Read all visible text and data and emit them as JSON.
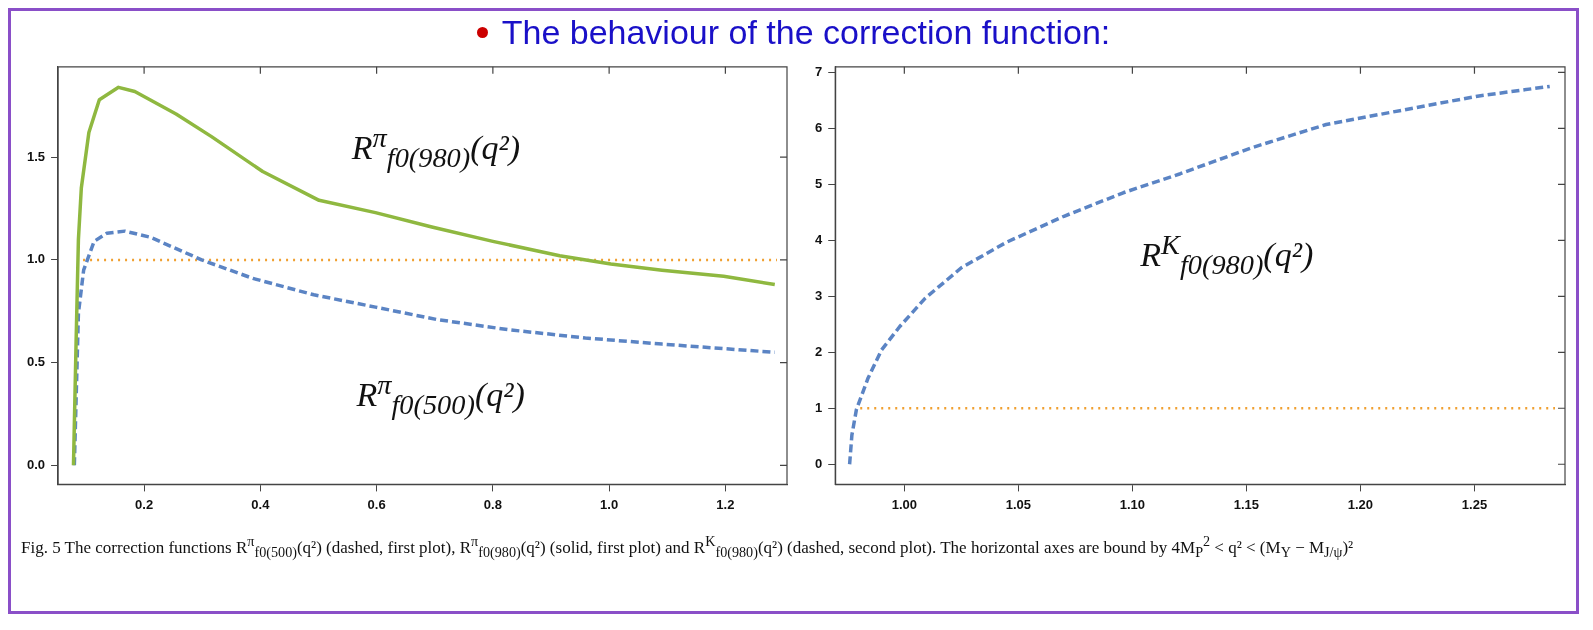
{
  "chart_data": [
    {
      "type": "line",
      "title": "The behaviour of the correction function:",
      "xlim": [
        0.052,
        1.306
      ],
      "ylim": [
        -0.093,
        1.94
      ],
      "xticks": [
        0.2,
        0.4,
        0.6,
        0.8,
        {
          "value": 1,
          "label": "1.0"
        },
        1.2
      ],
      "yticks": [
        {
          "value": 0,
          "label": "0.0"
        },
        0.5,
        {
          "value": 1,
          "label": "1.0"
        },
        1.5
      ],
      "grid": false,
      "legend": false,
      "marker": "none",
      "ref_lines": [
        {
          "axis": "y",
          "value": 1,
          "color": "#f0a030",
          "line_style": "dotted"
        }
      ],
      "series": [
        {
          "name": "R$^{π}$$_{f0(980)}$(q²)",
          "color": "#8fb840",
          "line_style": "solid",
          "x": [
            0.0785,
            0.083,
            0.087,
            0.092,
            0.105,
            0.123,
            0.156,
            0.184,
            0.255,
            0.316,
            0.404,
            0.501,
            0.598,
            0.695,
            0.8,
            0.915,
            1.003,
            1.091,
            1.197,
            1.285
          ],
          "values": [
            0,
            0.6,
            1.1,
            1.35,
            1.62,
            1.78,
            1.84,
            1.82,
            1.71,
            1.6,
            1.43,
            1.29,
            1.23,
            1.16,
            1.09,
            1.02,
            0.98,
            0.95,
            0.92,
            0.88
          ]
        },
        {
          "name": "R$^{π}$$_{f0(500)}$(q²)",
          "color": "#5b84c4",
          "line_style": "dashed",
          "x": [
            0.08,
            0.087,
            0.096,
            0.114,
            0.136,
            0.167,
            0.211,
            0.299,
            0.387,
            0.492,
            0.598,
            0.703,
            0.827,
            0.959,
            1.091,
            1.285
          ],
          "values": [
            0,
            0.74,
            0.95,
            1.09,
            1.13,
            1.14,
            1.11,
            1.0,
            0.91,
            0.83,
            0.77,
            0.71,
            0.66,
            0.62,
            0.59,
            0.55
          ]
        }
      ]
    },
    {
      "type": "line",
      "xlim": [
        0.9697,
        1.2897
      ],
      "ylim": [
        -0.36,
        7.1
      ],
      "xticks": [
        {
          "value": 1,
          "label": "1.00"
        },
        1.05,
        {
          "value": 1.1,
          "label": "1.10"
        },
        1.15,
        {
          "value": 1.2,
          "label": "1.20"
        },
        1.25
      ],
      "yticks": [
        0,
        1,
        2,
        3,
        4,
        5,
        6,
        7
      ],
      "grid": false,
      "legend": false,
      "marker": "none",
      "ref_lines": [
        {
          "axis": "y",
          "value": 1,
          "color": "#f0a030",
          "line_style": "dotted"
        }
      ],
      "annotations": [
        "Fig. 5 The correction functions R$^{π}$$_{f0(500)}$(q²) (dashed, first plot), R$^{π}$$_{f0(980)}$(q²) (solid, first plot) and R$^{K}$$_{f0(980)}$(q²) (dashed, second plot). The horizontal axes are bound by 4M$_{P}$$^{2}$ < q² < (M$_{Υ}$ − M$_{J/ψ}$)²"
      ],
      "series": [
        {
          "name": "R$^{K}$$_{f0(980)}$(q²)",
          "color": "#5b84c4",
          "line_style": "dashed",
          "x": [
            0.976,
            0.977,
            0.979,
            0.984,
            0.99,
            0.998,
            1.009,
            1.025,
            1.045,
            1.07,
            1.096,
            1.121,
            1.152,
            1.185,
            1.219,
            1.252,
            1.283
          ],
          "values": [
            0,
            0.52,
            0.98,
            1.53,
            2.04,
            2.46,
            2.96,
            3.51,
            3.97,
            4.43,
            4.85,
            5.19,
            5.65,
            6.07,
            6.33,
            6.58,
            6.75
          ]
        }
      ]
    }
  ]
}
